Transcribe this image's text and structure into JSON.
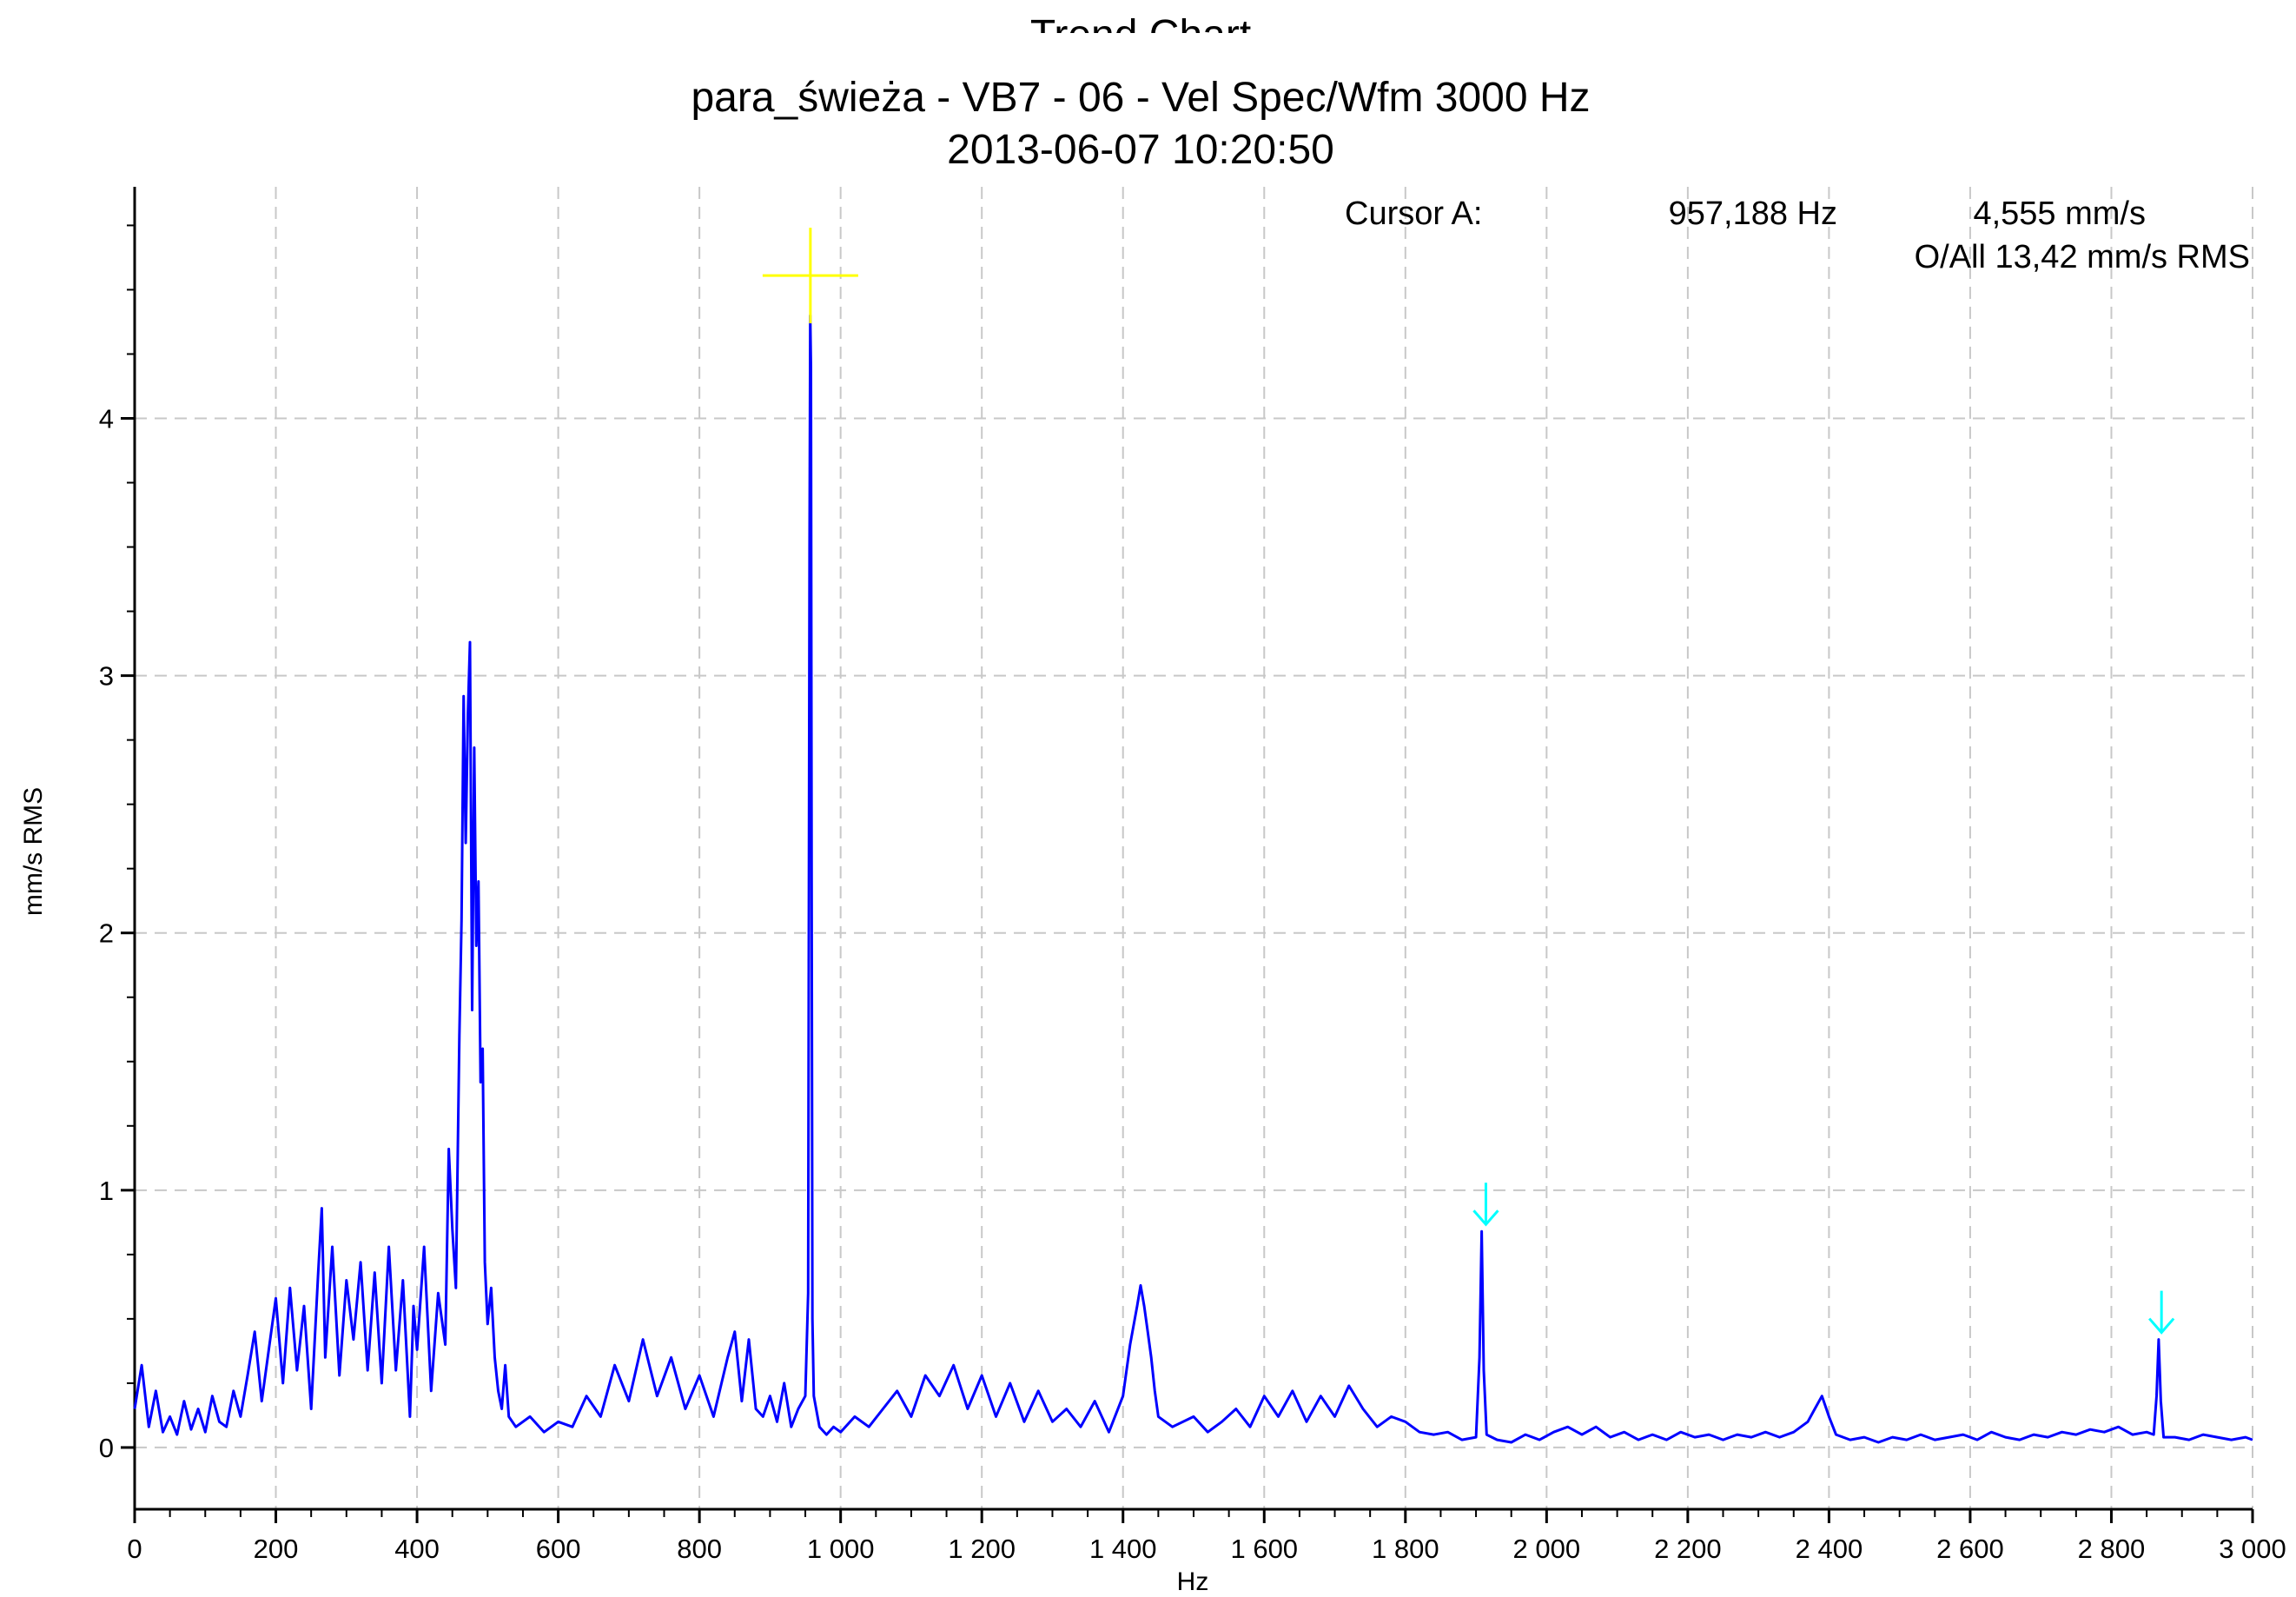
{
  "chart_data": {
    "type": "line",
    "title_top": "Trend Chart",
    "title": "para_świeża - VB7 - 06 - Vel Spec/Wfm 3000 Hz",
    "subtitle": "2013-06-07 10:20:50",
    "xlabel": "Hz",
    "ylabel": "mm/s RMS",
    "xlim": [
      0,
      3000
    ],
    "ylim": [
      -0.24,
      4.9
    ],
    "grid": true,
    "x_ticks": [
      0,
      200,
      400,
      600,
      800,
      1000,
      1200,
      1400,
      1600,
      1800,
      2000,
      2200,
      2400,
      2600,
      2800,
      3000
    ],
    "x_tick_labels": [
      "0",
      "200",
      "400",
      "600",
      "800",
      "1 000",
      "1 200",
      "1 400",
      "1 600",
      "1 800",
      "2 000",
      "2 200",
      "2 400",
      "2 600",
      "2 800",
      "3 000"
    ],
    "y_ticks": [
      0,
      1,
      2,
      3,
      4
    ],
    "y_tick_labels": [
      "0",
      "1",
      "2",
      "3",
      "4"
    ],
    "series": [
      {
        "color": "#0000ff",
        "points": [
          [
            0,
            0.15
          ],
          [
            10,
            0.32
          ],
          [
            20,
            0.08
          ],
          [
            30,
            0.22
          ],
          [
            40,
            0.06
          ],
          [
            50,
            0.12
          ],
          [
            60,
            0.05
          ],
          [
            70,
            0.18
          ],
          [
            80,
            0.07
          ],
          [
            90,
            0.15
          ],
          [
            100,
            0.06
          ],
          [
            110,
            0.2
          ],
          [
            120,
            0.1
          ],
          [
            130,
            0.08
          ],
          [
            140,
            0.22
          ],
          [
            150,
            0.12
          ],
          [
            160,
            0.28
          ],
          [
            170,
            0.45
          ],
          [
            180,
            0.18
          ],
          [
            190,
            0.38
          ],
          [
            200,
            0.58
          ],
          [
            210,
            0.25
          ],
          [
            220,
            0.62
          ],
          [
            230,
            0.3
          ],
          [
            240,
            0.55
          ],
          [
            250,
            0.15
          ],
          [
            260,
            0.68
          ],
          [
            265,
            0.93
          ],
          [
            270,
            0.35
          ],
          [
            280,
            0.78
          ],
          [
            290,
            0.28
          ],
          [
            300,
            0.65
          ],
          [
            310,
            0.42
          ],
          [
            320,
            0.72
          ],
          [
            330,
            0.3
          ],
          [
            340,
            0.68
          ],
          [
            350,
            0.25
          ],
          [
            360,
            0.78
          ],
          [
            370,
            0.3
          ],
          [
            380,
            0.65
          ],
          [
            390,
            0.12
          ],
          [
            395,
            0.55
          ],
          [
            400,
            0.38
          ],
          [
            410,
            0.78
          ],
          [
            420,
            0.22
          ],
          [
            430,
            0.6
          ],
          [
            440,
            0.4
          ],
          [
            445,
            1.16
          ],
          [
            450,
            0.85
          ],
          [
            455,
            0.62
          ],
          [
            460,
            1.6
          ],
          [
            463,
            2.05
          ],
          [
            466,
            2.92
          ],
          [
            469,
            2.35
          ],
          [
            472,
            2.85
          ],
          [
            475,
            3.13
          ],
          [
            478,
            1.7
          ],
          [
            481,
            2.72
          ],
          [
            484,
            1.95
          ],
          [
            487,
            2.2
          ],
          [
            490,
            1.42
          ],
          [
            493,
            1.55
          ],
          [
            496,
            0.72
          ],
          [
            500,
            0.48
          ],
          [
            505,
            0.62
          ],
          [
            510,
            0.35
          ],
          [
            515,
            0.22
          ],
          [
            520,
            0.15
          ],
          [
            525,
            0.32
          ],
          [
            530,
            0.12
          ],
          [
            540,
            0.08
          ],
          [
            560,
            0.12
          ],
          [
            580,
            0.06
          ],
          [
            600,
            0.1
          ],
          [
            620,
            0.08
          ],
          [
            640,
            0.2
          ],
          [
            660,
            0.12
          ],
          [
            680,
            0.32
          ],
          [
            700,
            0.18
          ],
          [
            720,
            0.42
          ],
          [
            740,
            0.2
          ],
          [
            760,
            0.35
          ],
          [
            780,
            0.15
          ],
          [
            800,
            0.28
          ],
          [
            820,
            0.12
          ],
          [
            840,
            0.35
          ],
          [
            850,
            0.45
          ],
          [
            860,
            0.18
          ],
          [
            870,
            0.42
          ],
          [
            880,
            0.15
          ],
          [
            890,
            0.12
          ],
          [
            900,
            0.2
          ],
          [
            910,
            0.1
          ],
          [
            920,
            0.25
          ],
          [
            930,
            0.08
          ],
          [
            940,
            0.15
          ],
          [
            950,
            0.2
          ],
          [
            954,
            0.6
          ],
          [
            956,
            3.5
          ],
          [
            957,
            4.4
          ],
          [
            958,
            4.2
          ],
          [
            959,
            2.2
          ],
          [
            960,
            0.5
          ],
          [
            962,
            0.2
          ],
          [
            970,
            0.08
          ],
          [
            980,
            0.05
          ],
          [
            990,
            0.08
          ],
          [
            1000,
            0.06
          ],
          [
            1020,
            0.12
          ],
          [
            1040,
            0.08
          ],
          [
            1060,
            0.15
          ],
          [
            1080,
            0.22
          ],
          [
            1100,
            0.12
          ],
          [
            1120,
            0.28
          ],
          [
            1140,
            0.2
          ],
          [
            1160,
            0.32
          ],
          [
            1180,
            0.15
          ],
          [
            1200,
            0.28
          ],
          [
            1220,
            0.12
          ],
          [
            1240,
            0.25
          ],
          [
            1260,
            0.1
          ],
          [
            1280,
            0.22
          ],
          [
            1300,
            0.1
          ],
          [
            1320,
            0.15
          ],
          [
            1340,
            0.08
          ],
          [
            1360,
            0.18
          ],
          [
            1380,
            0.06
          ],
          [
            1400,
            0.2
          ],
          [
            1410,
            0.4
          ],
          [
            1420,
            0.55
          ],
          [
            1425,
            0.63
          ],
          [
            1430,
            0.55
          ],
          [
            1435,
            0.45
          ],
          [
            1440,
            0.35
          ],
          [
            1445,
            0.22
          ],
          [
            1450,
            0.12
          ],
          [
            1470,
            0.08
          ],
          [
            1500,
            0.12
          ],
          [
            1520,
            0.06
          ],
          [
            1540,
            0.1
          ],
          [
            1560,
            0.15
          ],
          [
            1580,
            0.08
          ],
          [
            1600,
            0.2
          ],
          [
            1620,
            0.12
          ],
          [
            1640,
            0.22
          ],
          [
            1660,
            0.1
          ],
          [
            1680,
            0.2
          ],
          [
            1700,
            0.12
          ],
          [
            1720,
            0.24
          ],
          [
            1740,
            0.15
          ],
          [
            1760,
            0.08
          ],
          [
            1780,
            0.12
          ],
          [
            1800,
            0.1
          ],
          [
            1820,
            0.06
          ],
          [
            1840,
            0.05
          ],
          [
            1860,
            0.06
          ],
          [
            1880,
            0.03
          ],
          [
            1900,
            0.04
          ],
          [
            1905,
            0.35
          ],
          [
            1908,
            0.84
          ],
          [
            1911,
            0.3
          ],
          [
            1915,
            0.05
          ],
          [
            1930,
            0.03
          ],
          [
            1950,
            0.02
          ],
          [
            1970,
            0.05
          ],
          [
            1990,
            0.03
          ],
          [
            2010,
            0.06
          ],
          [
            2030,
            0.08
          ],
          [
            2050,
            0.05
          ],
          [
            2070,
            0.08
          ],
          [
            2090,
            0.04
          ],
          [
            2110,
            0.06
          ],
          [
            2130,
            0.03
          ],
          [
            2150,
            0.05
          ],
          [
            2170,
            0.03
          ],
          [
            2190,
            0.06
          ],
          [
            2210,
            0.04
          ],
          [
            2230,
            0.05
          ],
          [
            2250,
            0.03
          ],
          [
            2270,
            0.05
          ],
          [
            2290,
            0.04
          ],
          [
            2310,
            0.06
          ],
          [
            2330,
            0.04
          ],
          [
            2350,
            0.06
          ],
          [
            2370,
            0.1
          ],
          [
            2380,
            0.15
          ],
          [
            2390,
            0.2
          ],
          [
            2400,
            0.12
          ],
          [
            2410,
            0.05
          ],
          [
            2430,
            0.03
          ],
          [
            2450,
            0.04
          ],
          [
            2470,
            0.02
          ],
          [
            2490,
            0.04
          ],
          [
            2510,
            0.03
          ],
          [
            2530,
            0.05
          ],
          [
            2550,
            0.03
          ],
          [
            2570,
            0.04
          ],
          [
            2590,
            0.05
          ],
          [
            2610,
            0.03
          ],
          [
            2630,
            0.06
          ],
          [
            2650,
            0.04
          ],
          [
            2670,
            0.03
          ],
          [
            2690,
            0.05
          ],
          [
            2710,
            0.04
          ],
          [
            2730,
            0.06
          ],
          [
            2750,
            0.05
          ],
          [
            2770,
            0.07
          ],
          [
            2790,
            0.06
          ],
          [
            2810,
            0.08
          ],
          [
            2830,
            0.05
          ],
          [
            2850,
            0.06
          ],
          [
            2860,
            0.05
          ],
          [
            2864,
            0.2
          ],
          [
            2867,
            0.42
          ],
          [
            2870,
            0.18
          ],
          [
            2874,
            0.04
          ],
          [
            2890,
            0.04
          ],
          [
            2910,
            0.03
          ],
          [
            2930,
            0.05
          ],
          [
            2950,
            0.04
          ],
          [
            2970,
            0.03
          ],
          [
            2990,
            0.04
          ],
          [
            3000,
            0.03
          ]
        ]
      }
    ],
    "cursor": {
      "label": "Cursor A:",
      "freq_text": "957,188 Hz",
      "value_text": "4,555 mm/s",
      "overall_text": "O/All 13,42 mm/s RMS",
      "x": 957.188,
      "y": 4.555,
      "color": "#ffff00"
    },
    "markers": [
      {
        "x": 1914,
        "y": 0.84,
        "color": "#00ffff"
      },
      {
        "x": 2871,
        "y": 0.42,
        "color": "#00ffff"
      }
    ],
    "colors": {
      "line": "#0000ff",
      "grid": "#c8c8c8",
      "axis": "#000000"
    }
  }
}
